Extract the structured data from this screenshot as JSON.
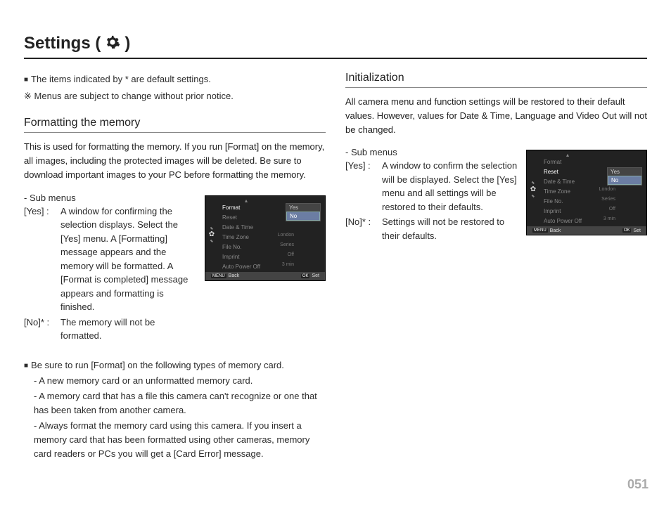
{
  "title": {
    "prefix": "Settings (",
    "suffix": ")"
  },
  "notes": {
    "line1": "The items indicated by * are default settings.",
    "line2": "Menus are subject to change without prior notice.",
    "bullet_symbol": "■",
    "star_symbol": "※"
  },
  "left": {
    "heading": "Formatting the memory",
    "intro": "This is used for formatting the memory. If you run [Format] on the memory, all images, including the protected images will be deleted. Be sure to download important images to your PC before formatting the memory.",
    "submenus_label": "- Sub menus",
    "yes_key": "[Yes]  :",
    "yes_desc": "A window for confirming the selection displays. Select the [Yes] menu. A [Formatting] message appears and the memory will be formatted. A [Format is completed] message appears and formatting is finished.",
    "no_key": "[No]*  :",
    "no_desc": "The memory will not be formatted.",
    "bullets_intro": "Be sure to run [Format] on the following types of memory card.",
    "bul1": "- A new memory card or an unformatted memory card.",
    "bul2": "- A memory card that has a file this camera can't recognize or one that has been taken from another camera.",
    "bul3": "- Always format the memory card using this camera. If you insert a memory card that has been formatted using other cameras, memory card readers or PCs you will get a [Card Error] message."
  },
  "right": {
    "heading": "Initialization",
    "intro": "All camera menu and function settings will be restored to their default values. However, values for Date & Time, Language and Video Out will not be changed.",
    "submenus_label": "- Sub menus",
    "yes_key": "[Yes] :",
    "yes_desc": "A window to confirm the selection will be displayed. Select the [Yes] menu and all settings will be restored to their defaults.",
    "no_key": "[No]* :",
    "no_desc": "Settings will not be restored to their defaults."
  },
  "camera_menu": {
    "items": [
      {
        "label": "Format",
        "value": ""
      },
      {
        "label": "Reset",
        "value": ""
      },
      {
        "label": "Date & Time",
        "value": ""
      },
      {
        "label": "Time Zone",
        "value": "London"
      },
      {
        "label": "File No.",
        "value": "Series"
      },
      {
        "label": "Imprint",
        "value": "Off"
      },
      {
        "label": "Auto Power Off",
        "value": "3 min"
      }
    ],
    "popup": {
      "yes": "Yes",
      "no": "No"
    },
    "footer": {
      "back_btn": "MENU",
      "back": "Back",
      "set_btn": "OK",
      "set": "Set"
    }
  },
  "cam1": {
    "active_index": 0,
    "selected_popup": "no"
  },
  "cam2": {
    "active_index": 1,
    "selected_popup": "no"
  },
  "page_number": "051",
  "colors": {
    "text": "#2b2b2b",
    "rule": "#222222",
    "subrule": "#888888",
    "pagenum": "#aaaaaa",
    "cam_bg": "#222222",
    "cam_popup_sel": "#6b7da3"
  }
}
